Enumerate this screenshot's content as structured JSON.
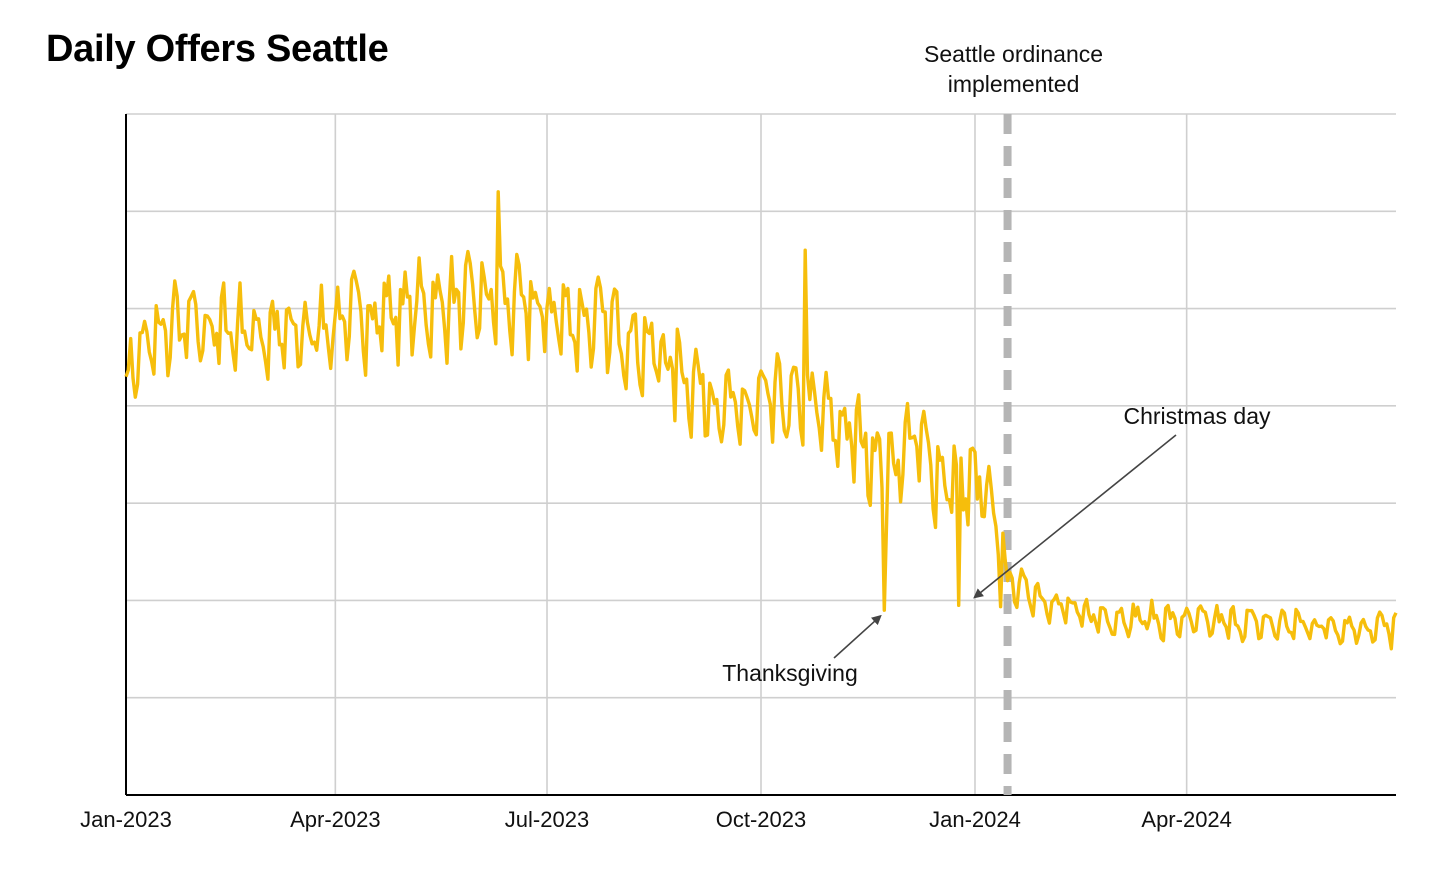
{
  "chart_data": {
    "type": "line",
    "title": "Daily Offers Seattle",
    "xlabel": "",
    "ylabel": "",
    "x_start": "2023-01-01",
    "x_end": "2024-06-30",
    "x_ticks": [
      {
        "date": "2023-01-01",
        "label": "Jan-2023"
      },
      {
        "date": "2023-04-01",
        "label": "Apr-2023"
      },
      {
        "date": "2023-07-01",
        "label": "Jul-2023"
      },
      {
        "date": "2023-10-01",
        "label": "Oct-2023"
      },
      {
        "date": "2024-01-01",
        "label": "Jan-2024"
      },
      {
        "date": "2024-04-01",
        "label": "Apr-2024"
      }
    ],
    "y_gridlines": 7,
    "y_tick_labels_shown": false,
    "grid": true,
    "line_color": "#F6BE0C",
    "series": [
      {
        "name": "",
        "anchors": [
          {
            "date": "2023-01-01",
            "y": 4.4
          },
          {
            "date": "2023-01-20",
            "y": 4.8
          },
          {
            "date": "2023-02-15",
            "y": 4.8
          },
          {
            "date": "2023-03-15",
            "y": 4.7
          },
          {
            "date": "2023-04-05",
            "y": 4.9
          },
          {
            "date": "2023-05-01",
            "y": 5.0
          },
          {
            "date": "2023-05-20",
            "y": 5.05
          },
          {
            "date": "2023-06-10",
            "y": 5.1
          },
          {
            "date": "2023-07-01",
            "y": 4.95
          },
          {
            "date": "2023-08-01",
            "y": 4.8
          },
          {
            "date": "2023-08-25",
            "y": 4.4
          },
          {
            "date": "2023-09-20",
            "y": 3.9
          },
          {
            "date": "2023-10-05",
            "y": 4.05
          },
          {
            "date": "2023-10-25",
            "y": 3.95
          },
          {
            "date": "2023-11-15",
            "y": 3.6
          },
          {
            "date": "2023-11-25",
            "y": 3.3
          },
          {
            "date": "2023-12-05",
            "y": 3.7
          },
          {
            "date": "2023-12-18",
            "y": 3.25
          },
          {
            "date": "2024-01-01",
            "y": 3.2
          },
          {
            "date": "2024-01-05",
            "y": 3.1
          },
          {
            "date": "2024-01-15",
            "y": 2.2
          },
          {
            "date": "2024-02-15",
            "y": 1.85
          },
          {
            "date": "2024-04-01",
            "y": 1.78
          },
          {
            "date": "2024-06-30",
            "y": 1.72
          }
        ],
        "outliers": [
          {
            "date": "2023-01-01",
            "y": 4.3
          },
          {
            "date": "2023-06-10",
            "y": 6.2
          },
          {
            "date": "2023-10-20",
            "y": 5.6
          },
          {
            "date": "2023-11-23",
            "y": 1.9
          },
          {
            "date": "2023-12-25",
            "y": 1.95
          }
        ]
      }
    ],
    "annotations": [
      {
        "id": "ordinance",
        "date": "2024-01-15",
        "line_lines": [
          "Seattle ordinance",
          "implemented"
        ],
        "style": "dashed-vertical"
      },
      {
        "id": "thanksgiving",
        "text": "Thanksgiving",
        "target_date": "2023-11-23",
        "target_y": 1.9
      },
      {
        "id": "christmas",
        "text": "Christmas day",
        "target_date": "2023-12-25",
        "target_y": 1.95
      }
    ]
  }
}
